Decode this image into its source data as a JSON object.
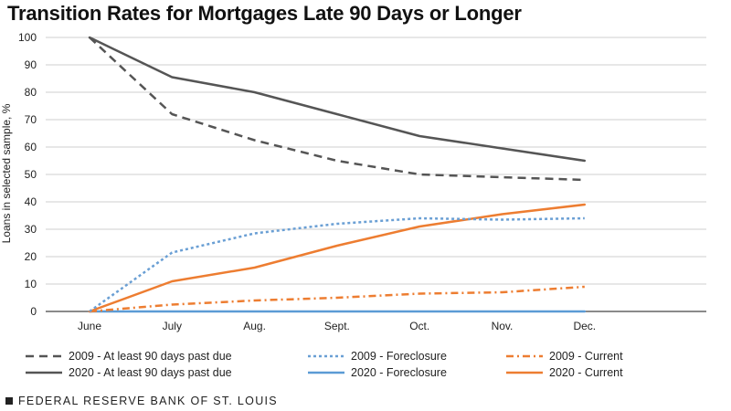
{
  "title": "Transition Rates for Mortgages Late 90 Days or Longer",
  "footer": "FEDERAL RESERVE BANK OF ST. LOUIS",
  "chart_data": {
    "type": "line",
    "title": "Transition Rates for Mortgages Late 90 Days or Longer",
    "ylabel": "Loans in selected sample, %",
    "xlabel": "",
    "categories": [
      "June",
      "July",
      "Aug.",
      "Sept.",
      "Oct.",
      "Nov.",
      "Dec."
    ],
    "ylim": [
      0,
      100
    ],
    "yticks": [
      0,
      10,
      20,
      30,
      40,
      50,
      60,
      70,
      80,
      90,
      100
    ],
    "grid": true,
    "legend_position": "bottom",
    "series": [
      {
        "name": "2009 - At least 90 days past due",
        "color": "#555555",
        "style": "dash",
        "values": [
          100,
          72,
          62.5,
          55,
          50,
          49,
          48
        ]
      },
      {
        "name": "2020 - At least 90 days past due",
        "color": "#555555",
        "style": "solid",
        "values": [
          100,
          85.5,
          80,
          72,
          64,
          59.5,
          55
        ]
      },
      {
        "name": "2009 - Foreclosure",
        "color": "#6a9fd4",
        "style": "dot",
        "values": [
          0,
          21.5,
          28.5,
          32,
          34,
          33.5,
          34
        ]
      },
      {
        "name": "2020 - Foreclosure",
        "color": "#5b9bd5",
        "style": "solid",
        "values": [
          0,
          0,
          0,
          0,
          0,
          0,
          0
        ]
      },
      {
        "name": "2009 - Current",
        "color": "#ed7d31",
        "style": "dashdot",
        "values": [
          0,
          2.5,
          4,
          5,
          6.5,
          7,
          9
        ]
      },
      {
        "name": "2020 - Current",
        "color": "#ed7d31",
        "style": "solid",
        "values": [
          0,
          11,
          16,
          24,
          31,
          35.5,
          39
        ]
      }
    ]
  }
}
